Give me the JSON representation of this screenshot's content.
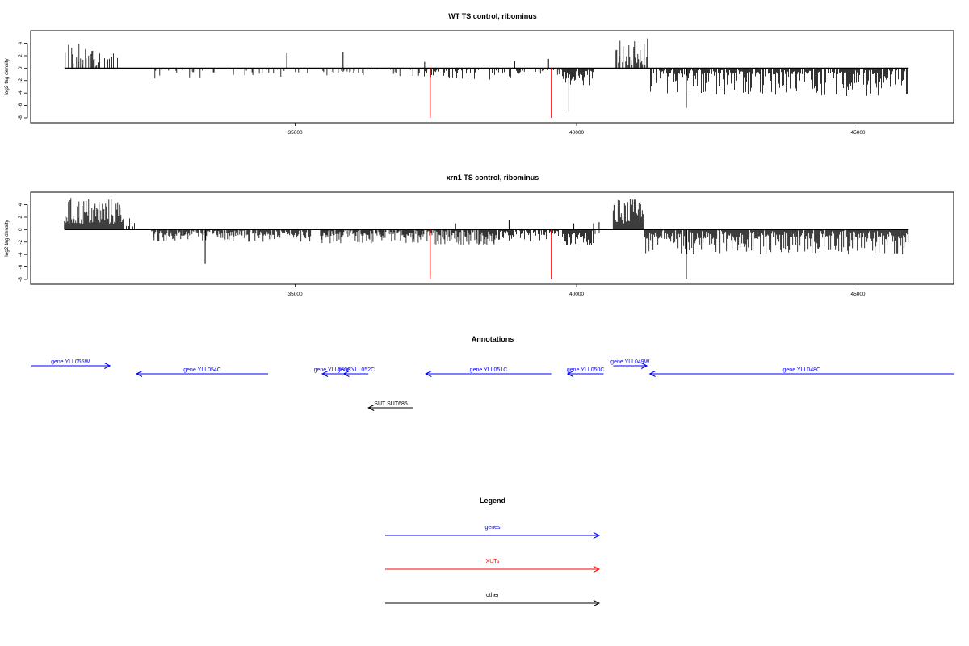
{
  "colors": {
    "gene": "#0000ff",
    "xut": "#ff0000",
    "other": "#000000",
    "plot": "#000000",
    "marker": "#ff0000"
  },
  "chart_data": [
    {
      "type": "bar",
      "title": "WT TS control, ribominus",
      "ylabel": "log2 tag density",
      "xlim": [
        30300,
        46700
      ],
      "ylim": [
        -8,
        5.5
      ],
      "yticks": [
        -8,
        -6,
        -4,
        -2,
        0,
        2,
        4
      ],
      "xticks": [
        35000,
        40000,
        45000
      ],
      "grid": false,
      "marker_lines": [
        37400,
        39550
      ],
      "segments": [
        {
          "x0": 30900,
          "x1": 31500,
          "density": 0.5,
          "top": 4.4,
          "bottom": 0.3,
          "dir": "up"
        },
        {
          "x0": 31500,
          "x1": 31850,
          "density": 0.4,
          "top": 3.0,
          "bottom": 0.5,
          "dir": "up"
        },
        {
          "x0": 32450,
          "x1": 33400,
          "density": 0.25,
          "top": -3.5,
          "bottom": -0.8,
          "dir": "down"
        },
        {
          "x0": 33400,
          "x1": 34400,
          "density": 0.25,
          "top": -3.0,
          "bottom": -0.8,
          "dir": "down"
        },
        {
          "x0": 34400,
          "x1": 35250,
          "density": 0.2,
          "top": -3.0,
          "bottom": -0.8,
          "dir": "down"
        },
        {
          "x0": 35450,
          "x1": 36300,
          "density": 0.25,
          "top": -3.0,
          "bottom": -0.8,
          "dir": "down"
        },
        {
          "x0": 36300,
          "x1": 37250,
          "density": 0.25,
          "top": -3.0,
          "bottom": -0.8,
          "dir": "down"
        },
        {
          "x0": 37250,
          "x1": 39000,
          "density": 0.5,
          "top": -3.5,
          "bottom": -0.8,
          "dir": "down"
        },
        {
          "x0": 39000,
          "x1": 39750,
          "density": 0.4,
          "top": -2.5,
          "bottom": -0.6,
          "dir": "down"
        },
        {
          "x0": 39750,
          "x1": 40300,
          "density": 1.0,
          "top": -7.5,
          "bottom": -2.0,
          "dir": "down"
        },
        {
          "x0": 40700,
          "x1": 41300,
          "density": 0.7,
          "top": 4.8,
          "bottom": 0.5,
          "dir": "up"
        },
        {
          "x0": 41300,
          "x1": 45900,
          "density": 0.9,
          "top": -6.5,
          "bottom": -1.0,
          "dir": "down"
        }
      ],
      "spikes": [
        {
          "x": 34850,
          "y": 2.4
        },
        {
          "x": 35850,
          "y": 2.6
        },
        {
          "x": 37300,
          "y": 1.0
        },
        {
          "x": 38900,
          "y": 1.1
        },
        {
          "x": 39500,
          "y": 1.5
        },
        {
          "x": 39850,
          "y": -7.0
        },
        {
          "x": 41950,
          "y": -6.4
        }
      ]
    },
    {
      "type": "bar",
      "title": "xrn1 TS control, ribominus",
      "ylabel": "log2 tag density",
      "xlim": [
        30300,
        46700
      ],
      "ylim": [
        -8,
        5.5
      ],
      "yticks": [
        -8,
        -6,
        -4,
        -2,
        0,
        2,
        4
      ],
      "xticks": [
        35000,
        40000,
        45000
      ],
      "grid": false,
      "marker_lines": [
        37400,
        39550
      ],
      "segments": [
        {
          "x0": 30900,
          "x1": 31950,
          "density": 1.0,
          "top": 5.2,
          "bottom": 0.8,
          "dir": "up"
        },
        {
          "x0": 32000,
          "x1": 32150,
          "density": 0.5,
          "top": 2.0,
          "bottom": 0.5,
          "dir": "up"
        },
        {
          "x0": 32450,
          "x1": 34600,
          "density": 0.9,
          "top": -4.0,
          "bottom": -1.0,
          "dir": "down"
        },
        {
          "x0": 34600,
          "x1": 35300,
          "density": 0.8,
          "top": -4.0,
          "bottom": -1.0,
          "dir": "down"
        },
        {
          "x0": 35450,
          "x1": 37200,
          "density": 0.9,
          "top": -4.2,
          "bottom": -1.0,
          "dir": "down"
        },
        {
          "x0": 37200,
          "x1": 38600,
          "density": 0.9,
          "top": -4.5,
          "bottom": -1.0,
          "dir": "down"
        },
        {
          "x0": 38600,
          "x1": 39700,
          "density": 0.9,
          "top": -4.0,
          "bottom": -1.0,
          "dir": "down"
        },
        {
          "x0": 39750,
          "x1": 40300,
          "density": 1.0,
          "top": -7.8,
          "bottom": -2.5,
          "dir": "down"
        },
        {
          "x0": 40300,
          "x1": 40450,
          "density": 0.5,
          "top": -2.5,
          "bottom": -0.8,
          "dir": "down"
        },
        {
          "x0": 40650,
          "x1": 41200,
          "density": 1.0,
          "top": 5.0,
          "bottom": 1.0,
          "dir": "up"
        },
        {
          "x0": 41200,
          "x1": 45900,
          "density": 1.0,
          "top": -7.0,
          "bottom": -1.5,
          "dir": "down"
        }
      ],
      "spikes": [
        {
          "x": 33400,
          "y": -5.5
        },
        {
          "x": 37850,
          "y": 1.0
        },
        {
          "x": 38800,
          "y": 1.6
        },
        {
          "x": 39950,
          "y": 1.0
        },
        {
          "x": 40300,
          "y": 1.0
        },
        {
          "x": 40400,
          "y": 1.2
        },
        {
          "x": 41950,
          "y": -8.0
        }
      ]
    }
  ],
  "annotations": {
    "title": "Annotations",
    "xlim": [
      30300,
      46700
    ],
    "features": [
      {
        "label": "gene YLL055W",
        "x0": 30300,
        "x1": 31710,
        "dir": "right",
        "row": 0,
        "kind": "gene"
      },
      {
        "label": "gene YLL054C",
        "x0": 32180,
        "x1": 34520,
        "dir": "left",
        "row": 1,
        "kind": "gene"
      },
      {
        "label": "gene YLL053C",
        "x0": 35480,
        "x1": 35850,
        "dir": "left",
        "row": 1,
        "kind": "gene"
      },
      {
        "label": "gene YLL052C",
        "x0": 35860,
        "x1": 36300,
        "dir": "left",
        "row": 1,
        "kind": "gene"
      },
      {
        "label": "gene YLL051C",
        "x0": 37320,
        "x1": 39550,
        "dir": "left",
        "row": 1,
        "kind": "gene"
      },
      {
        "label": "gene YLL050C",
        "x0": 39840,
        "x1": 40480,
        "dir": "left",
        "row": 1,
        "kind": "gene"
      },
      {
        "label": "gene YLL049W",
        "x0": 40650,
        "x1": 41250,
        "dir": "right",
        "row": 0,
        "kind": "gene"
      },
      {
        "label": "gene YLL048C",
        "x0": 41300,
        "x1": 46700,
        "dir": "left",
        "row": 1,
        "kind": "gene"
      },
      {
        "label": "SUT SUT685",
        "x0": 36300,
        "x1": 37100,
        "dir": "left",
        "row": 2,
        "kind": "other"
      }
    ]
  },
  "legend": {
    "title": "Legend",
    "items": [
      {
        "label": "genes",
        "kind": "gene"
      },
      {
        "label": "XUTs",
        "kind": "xut"
      },
      {
        "label": "other",
        "kind": "other"
      }
    ]
  }
}
